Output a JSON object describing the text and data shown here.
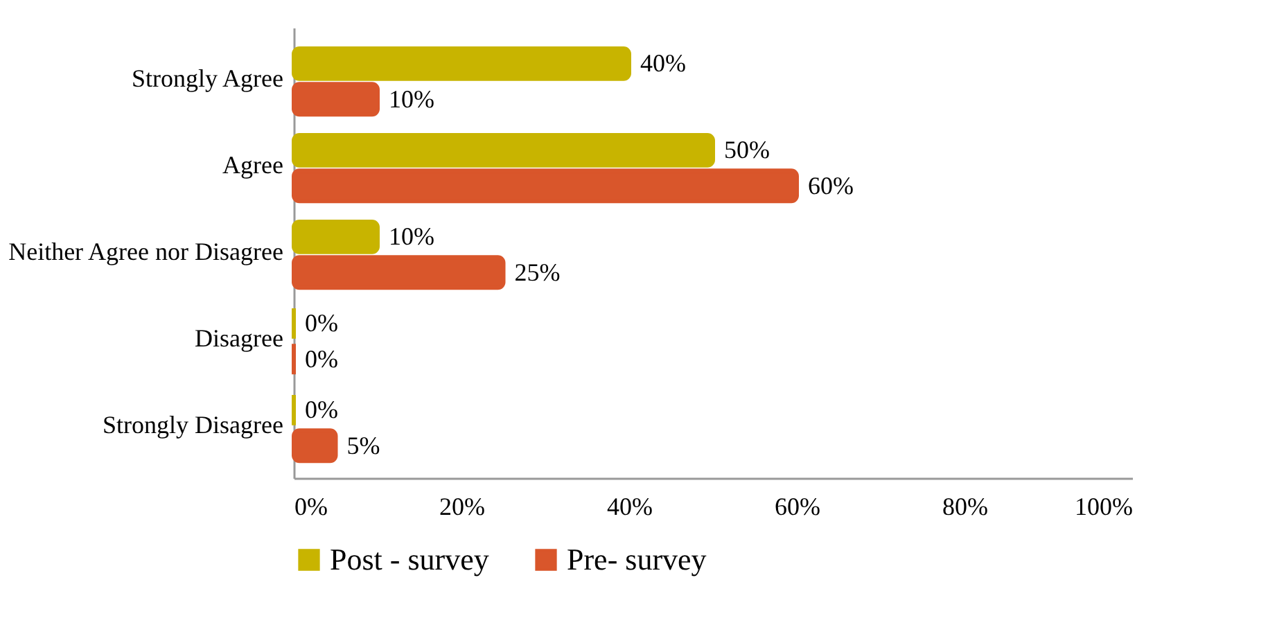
{
  "chart_data": {
    "type": "bar",
    "orientation": "horizontal",
    "categories": [
      "Strongly Agree",
      "Agree",
      "Neither Agree nor Disagree",
      "Disagree",
      "Strongly Disagree"
    ],
    "series": [
      {
        "name": "Post - survey",
        "color": "#c8b400",
        "values": [
          40,
          50,
          10,
          0,
          0
        ],
        "value_labels": [
          "40%",
          "50%",
          "10%",
          "0%",
          "0%"
        ]
      },
      {
        "name": "Pre- survey",
        "color": "#d9562b",
        "values": [
          10,
          60,
          25,
          0,
          5
        ],
        "value_labels": [
          "10%",
          "60%",
          "25%",
          "0%",
          "5%"
        ]
      }
    ],
    "xlim": [
      0,
      100
    ],
    "xticks": [
      {
        "value": 0,
        "label": "0%"
      },
      {
        "value": 20,
        "label": "20%"
      },
      {
        "value": 40,
        "label": "40%"
      },
      {
        "value": 60,
        "label": "60%"
      },
      {
        "value": 80,
        "label": "80%"
      },
      {
        "value": 100,
        "label": "100%"
      }
    ],
    "grid": false,
    "legend": "bottom"
  }
}
